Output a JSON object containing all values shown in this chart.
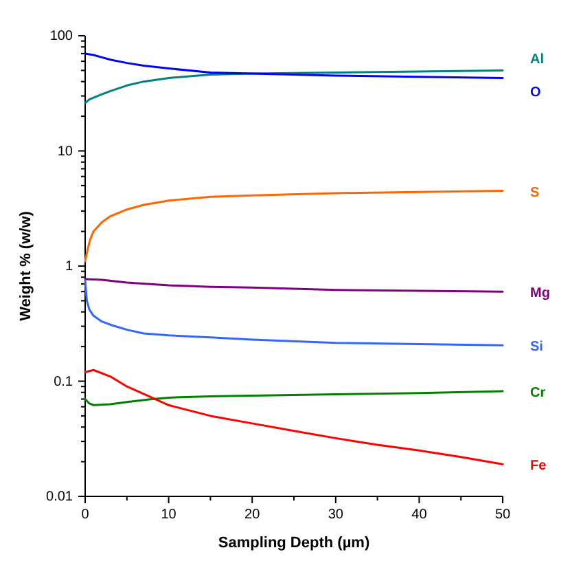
{
  "chart_data": {
    "type": "line",
    "xlabel": "Sampling Depth (µm)",
    "ylabel": "Weight % (w/w)",
    "log": "y",
    "grid": false,
    "marker": "none",
    "line_style": "solid",
    "xlim": [
      0,
      50
    ],
    "xticks": [
      0,
      {
        "value": 5,
        "label": null
      },
      10,
      {
        "value": 15,
        "label": null
      },
      20,
      {
        "value": 25,
        "label": null
      },
      30,
      {
        "value": 35,
        "label": null
      },
      40,
      {
        "value": 45,
        "label": null
      },
      50
    ],
    "ylim": [
      0.01,
      100
    ],
    "yticks": [
      0.01,
      {
        "value": 0.02,
        "label": null
      },
      {
        "value": 0.03,
        "label": null
      },
      {
        "value": 0.04,
        "label": null
      },
      {
        "value": 0.05,
        "label": null
      },
      {
        "value": 0.06,
        "label": null
      },
      {
        "value": 0.07,
        "label": null
      },
      {
        "value": 0.08,
        "label": null
      },
      {
        "value": 0.09,
        "label": null
      },
      0.1,
      {
        "value": 0.2,
        "label": null
      },
      {
        "value": 0.3,
        "label": null
      },
      {
        "value": 0.4,
        "label": null
      },
      {
        "value": 0.5,
        "label": null
      },
      {
        "value": 0.6,
        "label": null
      },
      {
        "value": 0.7,
        "label": null
      },
      {
        "value": 0.8,
        "label": null
      },
      {
        "value": 0.9,
        "label": null
      },
      1,
      {
        "value": 2,
        "label": null
      },
      {
        "value": 3,
        "label": null
      },
      {
        "value": 4,
        "label": null
      },
      {
        "value": 5,
        "label": null
      },
      {
        "value": 6,
        "label": null
      },
      {
        "value": 7,
        "label": null
      },
      {
        "value": 8,
        "label": null
      },
      {
        "value": 9,
        "label": null
      },
      10,
      {
        "value": 20,
        "label": null
      },
      {
        "value": 30,
        "label": null
      },
      {
        "value": 40,
        "label": null
      },
      {
        "value": 50,
        "label": null
      },
      {
        "value": 60,
        "label": null
      },
      {
        "value": 70,
        "label": null
      },
      {
        "value": 80,
        "label": null
      },
      {
        "value": 90,
        "label": null
      },
      100
    ],
    "series": [
      {
        "name": "Al",
        "color": "#008080",
        "x": [
          0,
          0.5,
          1,
          2,
          3,
          5,
          7,
          10,
          15,
          20,
          30,
          40,
          50
        ],
        "values": [
          26,
          28,
          29,
          31,
          33,
          37,
          40,
          43,
          46,
          47,
          48,
          49,
          50
        ]
      },
      {
        "name": "O",
        "color": "#0000ff",
        "x": [
          0,
          1,
          2,
          3,
          5,
          7,
          10,
          15,
          20,
          30,
          40,
          50
        ],
        "values": [
          70,
          68,
          65,
          62,
          58,
          55,
          52,
          48,
          47,
          45,
          44,
          43
        ]
      },
      {
        "name": "S",
        "color": "#ff6600",
        "x": [
          0,
          0.3,
          0.6,
          1,
          2,
          3,
          5,
          7,
          10,
          15,
          20,
          30,
          40,
          50
        ],
        "values": [
          1.1,
          1.4,
          1.7,
          2.0,
          2.4,
          2.7,
          3.1,
          3.4,
          3.7,
          4.0,
          4.1,
          4.3,
          4.4,
          4.5
        ]
      },
      {
        "name": "Mg",
        "color": "#800080",
        "x": [
          0,
          2,
          5,
          10,
          15,
          20,
          30,
          40,
          50
        ],
        "values": [
          0.77,
          0.76,
          0.72,
          0.68,
          0.66,
          0.65,
          0.62,
          0.61,
          0.6
        ]
      },
      {
        "name": "Si",
        "color": "#3366ff",
        "x": [
          0,
          0.2,
          0.5,
          1,
          2,
          3,
          5,
          7,
          10,
          15,
          20,
          30,
          40,
          50
        ],
        "values": [
          0.75,
          0.5,
          0.42,
          0.37,
          0.33,
          0.31,
          0.28,
          0.26,
          0.25,
          0.24,
          0.23,
          0.215,
          0.21,
          0.205
        ]
      },
      {
        "name": "Cr",
        "color": "#008000",
        "x": [
          0,
          0.5,
          1,
          3,
          5,
          8,
          10,
          15,
          20,
          30,
          40,
          50
        ],
        "values": [
          0.07,
          0.064,
          0.062,
          0.063,
          0.066,
          0.07,
          0.072,
          0.074,
          0.075,
          0.077,
          0.079,
          0.082
        ]
      },
      {
        "name": "Fe",
        "color": "#ff0000",
        "x": [
          0,
          1,
          3,
          5,
          8,
          10,
          15,
          20,
          25,
          30,
          35,
          40,
          45,
          50
        ],
        "values": [
          0.12,
          0.125,
          0.11,
          0.09,
          0.072,
          0.062,
          0.05,
          0.043,
          0.037,
          0.032,
          0.028,
          0.025,
          0.022,
          0.019
        ]
      }
    ]
  }
}
